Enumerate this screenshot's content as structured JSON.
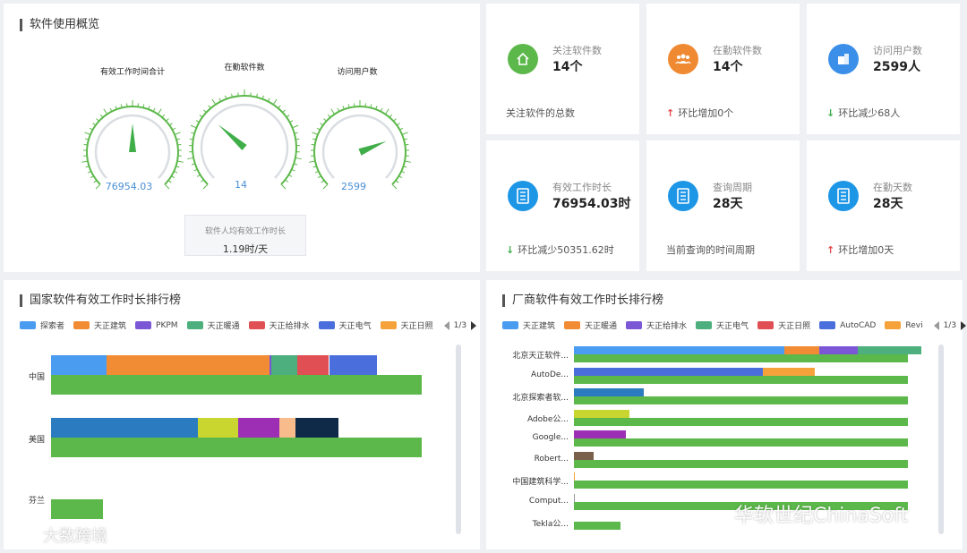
{
  "overview": {
    "title": "软件使用概览",
    "gauges": [
      {
        "label": "有效工作时间合计",
        "value": "76954.03",
        "level": 0.5
      },
      {
        "label": "在勤软件数",
        "value": "14",
        "level": 0.32
      },
      {
        "label": "访问用户数",
        "value": "2599",
        "level": 0.75
      }
    ],
    "avg_label": "软件人均有效工作时长",
    "avg_value": "1.19时/天"
  },
  "cards": [
    {
      "label": "关注软件数",
      "value": "14个",
      "footer": "关注软件的总数",
      "trend": "none",
      "icon": "home-icon",
      "color": "#5cb84a"
    },
    {
      "label": "在勤软件数",
      "value": "14个",
      "footer": "环比增加0个",
      "trend": "up",
      "icon": "users-icon",
      "color": "#f08a32"
    },
    {
      "label": "访问用户数",
      "value": "2599人",
      "footer": "环比减少68人",
      "trend": "down",
      "icon": "building-icon",
      "color": "#3b8fe8"
    },
    {
      "label": "有效工作时长",
      "value": "76954.03时",
      "footer": "环比减少50351.62时",
      "trend": "down",
      "icon": "document-icon",
      "color": "#1e96e6"
    },
    {
      "label": "查询周期",
      "value": "28天",
      "footer": "当前查询的时间周期",
      "trend": "none",
      "icon": "document-icon",
      "color": "#1e96e6"
    },
    {
      "label": "在勤天数",
      "value": "28天",
      "footer": "环比增加0天",
      "trend": "up",
      "icon": "document-icon",
      "color": "#1e96e6"
    }
  ],
  "trend_arrows": {
    "up": "↑",
    "down": "↓"
  },
  "country_chart": {
    "title": "国家软件有效工作时长排行榜",
    "legend": [
      {
        "name": "探索者",
        "color": "#4a9cf0"
      },
      {
        "name": "天正建筑",
        "color": "#f28c34"
      },
      {
        "name": "PKPM",
        "color": "#7b57d6"
      },
      {
        "name": "天正暖通",
        "color": "#4caf7d"
      },
      {
        "name": "天正给排水",
        "color": "#e04f53"
      },
      {
        "name": "天正电气",
        "color": "#4a6fdc"
      },
      {
        "name": "天正日照",
        "color": "#f5a23a"
      }
    ],
    "page": "1/3",
    "rows": [
      {
        "name": "中国",
        "total": 1.0,
        "segments": [
          {
            "color": "#4a9cf0",
            "value": 0.15
          },
          {
            "color": "#f28c34",
            "value": 0.44
          },
          {
            "color": "#7b57d6",
            "value": 0.005
          },
          {
            "color": "#4caf7d",
            "value": 0.07
          },
          {
            "color": "#e04f53",
            "value": 0.085
          },
          {
            "color": "#4a6fdc",
            "value": 0.13
          }
        ]
      },
      {
        "name": "美国",
        "total": 1.0,
        "segments": [
          {
            "color": "#2a7bbf",
            "value": 0.395
          },
          {
            "color": "#c9d630",
            "value": 0.11
          },
          {
            "color": "#9c2fb3",
            "value": 0.11
          },
          {
            "color": "#f7bb8c",
            "value": 0.045
          },
          {
            "color": "#0f2a48",
            "value": 0.115
          }
        ]
      },
      {
        "name": "芬兰",
        "total": 0.14,
        "segments": []
      }
    ]
  },
  "vendor_chart": {
    "title": "厂商软件有效工作时长排行榜",
    "legend": [
      {
        "name": "天正建筑",
        "color": "#4a9cf0"
      },
      {
        "name": "天正暖通",
        "color": "#f28c34"
      },
      {
        "name": "天正给排水",
        "color": "#7b57d6"
      },
      {
        "name": "天正电气",
        "color": "#4caf7d"
      },
      {
        "name": "天正日照",
        "color": "#e04f53"
      },
      {
        "name": "AutoCAD",
        "color": "#4a6fdc"
      },
      {
        "name": "Revi",
        "color": "#f5a23a"
      }
    ],
    "page": "1/3",
    "rows": [
      {
        "name": "北京天正软件...",
        "total": 1.0,
        "segments": [
          {
            "color": "#4a9cf0",
            "value": 0.63
          },
          {
            "color": "#f28c34",
            "value": 0.105
          },
          {
            "color": "#7b57d6",
            "value": 0.115
          },
          {
            "color": "#4caf7d",
            "value": 0.19
          }
        ]
      },
      {
        "name": "AutoDe...",
        "total": 1.0,
        "segments": [
          {
            "color": "#4a6fdc",
            "value": 0.565
          },
          {
            "color": "#f5a23a",
            "value": 0.155
          }
        ]
      },
      {
        "name": "北京探索者软...",
        "total": 1.0,
        "segments": [
          {
            "color": "#2a7bbf",
            "value": 0.21
          }
        ]
      },
      {
        "name": "Adobe公...",
        "total": 1.0,
        "segments": [
          {
            "color": "#c9d630",
            "value": 0.165
          }
        ]
      },
      {
        "name": "Google...",
        "total": 1.0,
        "segments": [
          {
            "color": "#9c2fb3",
            "value": 0.155
          }
        ]
      },
      {
        "name": "Robert...",
        "total": 1.0,
        "segments": [
          {
            "color": "#7a5f4a",
            "value": 0.06
          }
        ]
      },
      {
        "name": "中国建筑科学...",
        "total": 1.0,
        "segments": [
          {
            "color": "#f5a23a",
            "value": 0.004
          }
        ]
      },
      {
        "name": "Comput...",
        "total": 1.0,
        "segments": [
          {
            "color": "#999999",
            "value": 0.003
          }
        ]
      },
      {
        "name": "Tekla公...",
        "total": 0.14,
        "segments": []
      }
    ]
  },
  "watermarks": {
    "left": "大数跨境",
    "right": "华软世纪ChinaSoft"
  },
  "colors": {
    "total_bar": "#5cb84a",
    "accent_blue": "#4a8fd6"
  }
}
